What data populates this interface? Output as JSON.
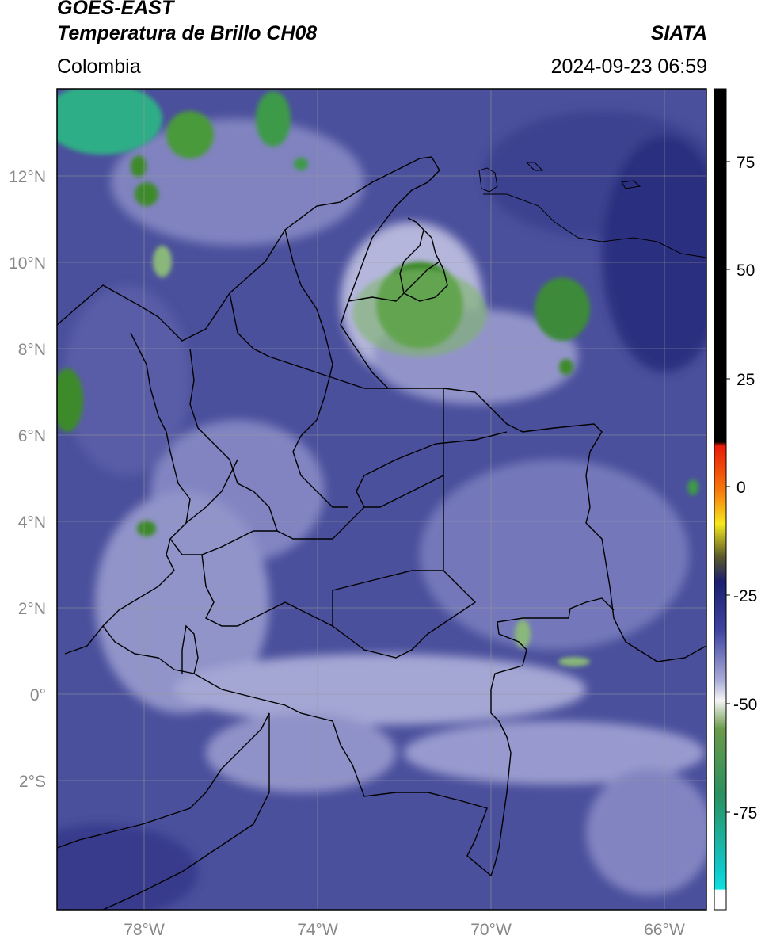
{
  "header": {
    "satellite": "GOES-EAST",
    "product": "Temperatura de Brillo CH08",
    "region": "Colombia",
    "agency": "SIATA",
    "datetime": "2024-09-23 06:59"
  },
  "map": {
    "lon_range": [
      -80,
      -65
    ],
    "lat_range": [
      -5,
      14
    ],
    "lat_ticks": [
      "12°N",
      "10°N",
      "8°N",
      "6°N",
      "4°N",
      "2°N",
      "0°",
      "2°S"
    ],
    "lat_tick_values": [
      12,
      10,
      8,
      6,
      4,
      2,
      0,
      -2
    ],
    "lon_ticks": [
      "78°W",
      "74°W",
      "70°W",
      "66°W"
    ],
    "lon_tick_values": [
      -78,
      -74,
      -70,
      -66
    ],
    "gridlines": true,
    "background_color": "#4a4f9a",
    "borders_color": "#000000"
  },
  "colorbar": {
    "range": [
      -100,
      90
    ],
    "tick_labels": [
      "75",
      "50",
      "25",
      "0",
      "-25",
      "-50",
      "-75"
    ],
    "tick_values": [
      75,
      50,
      25,
      0,
      -25,
      -50,
      -75
    ],
    "colors": {
      "black": "#000000",
      "red": "#e81a0a",
      "orange": "#f79a0c",
      "yellow": "#f6e81c",
      "dark_navy": "#1b1f6e",
      "blue": "#3e45a0",
      "lavender": "#a8aad6",
      "white": "#f5f5f5",
      "green": "#3c8a2c",
      "teal": "#2ca884",
      "cyan": "#0fd6d6"
    }
  }
}
